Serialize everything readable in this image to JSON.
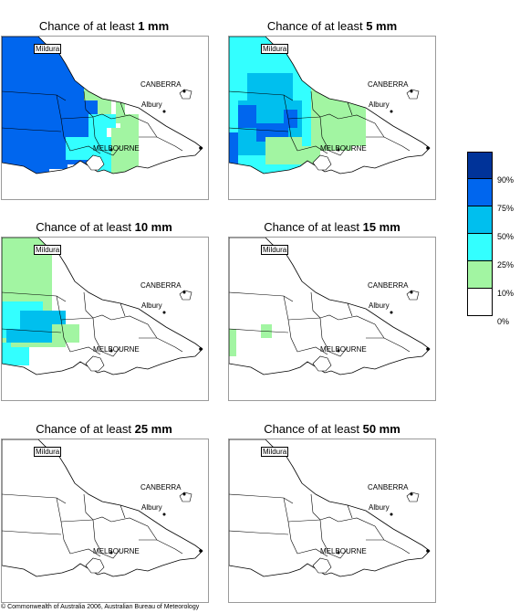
{
  "colors": {
    "c10": "#a2f5a2",
    "c25": "#33ffff",
    "c50": "#00bfee",
    "c75": "#0066ee",
    "c90": "#003399",
    "border": "#000000"
  },
  "panels": [
    {
      "title_prefix": "Chance of at least ",
      "amount": "1 mm",
      "labels": {
        "mildura": "Mildura",
        "canberra": "CANBERRA",
        "albury": "Albury",
        "melbourne": "MELBOURNE"
      }
    },
    {
      "title_prefix": "Chance of at least ",
      "amount": "5 mm",
      "labels": {
        "mildura": "Mildura",
        "canberra": "CANBERRA",
        "albury": "Albury",
        "melbourne": "MELBOURNE"
      }
    },
    {
      "title_prefix": "Chance of at least ",
      "amount": "10 mm",
      "labels": {
        "mildura": "Mildura",
        "canberra": "CANBERRA",
        "albury": "Albury",
        "melbourne": "MELBOURNE"
      }
    },
    {
      "title_prefix": "Chance of at least ",
      "amount": "15 mm",
      "labels": {
        "mildura": "Mildura",
        "canberra": "CANBERRA",
        "albury": "Albury",
        "melbourne": "MELBOURNE"
      }
    },
    {
      "title_prefix": "Chance of at least ",
      "amount": "25 mm",
      "labels": {
        "mildura": "Mildura",
        "canberra": "CANBERRA",
        "albury": "Albury",
        "melbourne": "MELBOURNE"
      }
    },
    {
      "title_prefix": "Chance of at least ",
      "amount": "50 mm",
      "labels": {
        "mildura": "Mildura",
        "canberra": "CANBERRA",
        "albury": "Albury",
        "melbourne": "MELBOURNE"
      }
    }
  ],
  "legend": {
    "labels": [
      "90%",
      "75%",
      "50%",
      "25%",
      "10%",
      "0%"
    ]
  },
  "copyright": "© Commonwealth of Australia 2006, Australian Bureau of Meteorology"
}
